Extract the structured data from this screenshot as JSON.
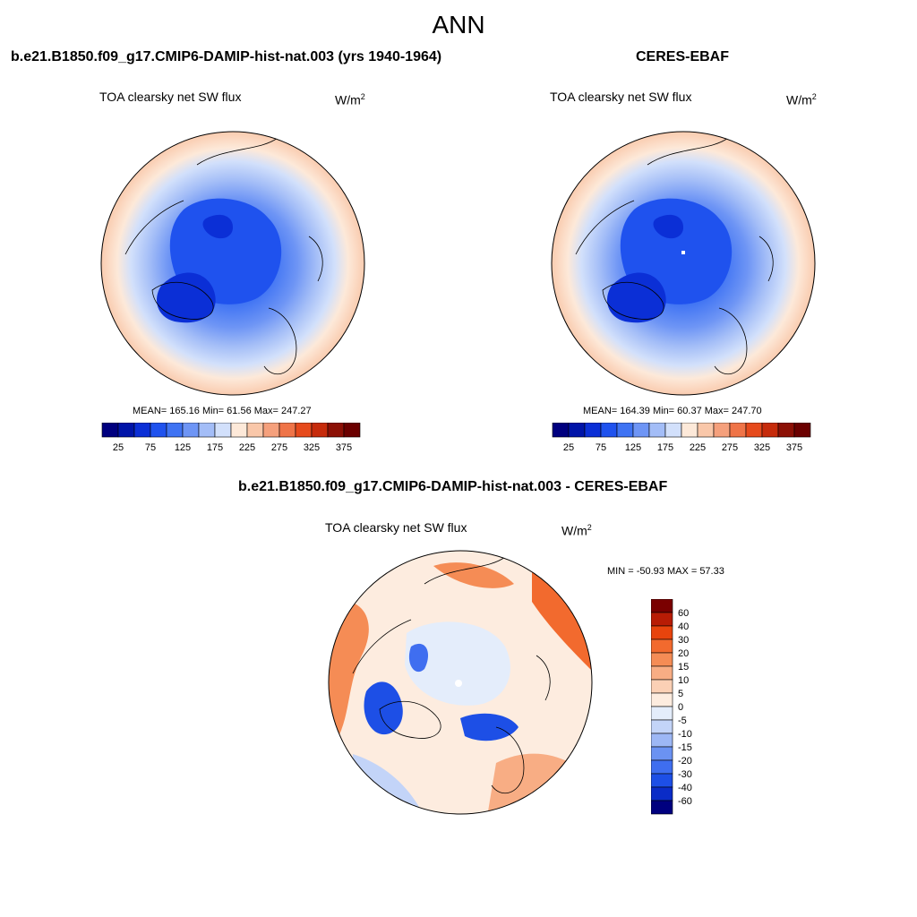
{
  "figure": {
    "season": "ANN",
    "variable_label": "TOA clearsky net SW flux",
    "units_prefix": "W/m",
    "units_power": "2"
  },
  "panels": {
    "model": {
      "title": "b.e21.B1850.f09_g17.CMIP6-DAMIP-hist-nat.003 (yrs 1940-1964)",
      "stats": "MEAN= 165.16  Min=  61.56  Max= 247.27"
    },
    "obs": {
      "title": "CERES-EBAF",
      "stats": "MEAN= 164.39  Min=  60.37  Max= 247.70"
    },
    "diff": {
      "title": "b.e21.B1850.f09_g17.CMIP6-DAMIP-hist-nat.003 - CERES-EBAF",
      "stats": "MIN = -50.93 MAX =  57.33"
    }
  },
  "colorbars": {
    "abs": {
      "tick_labels": [
        "25",
        "75",
        "125",
        "175",
        "225",
        "275",
        "325",
        "375"
      ],
      "colors": [
        "#00007f",
        "#0014a8",
        "#0b2fd6",
        "#1f52ee",
        "#3f73f3",
        "#6e95f5",
        "#a3bdf7",
        "#d2e0fb",
        "#fde9d9",
        "#f9c7a9",
        "#f5a07c",
        "#ef7448",
        "#e64a1c",
        "#c62b0b",
        "#8c1006",
        "#6b0000"
      ]
    },
    "diff": {
      "tick_labels": [
        "60",
        "40",
        "30",
        "20",
        "15",
        "10",
        "5",
        "0",
        "-5",
        "-10",
        "-15",
        "-20",
        "-30",
        "-40",
        "-60"
      ],
      "colors": [
        "#7a0000",
        "#b81c05",
        "#e8440d",
        "#f26a2e",
        "#f58c55",
        "#f8ad84",
        "#fbd0b5",
        "#fdecdf",
        "#e4edfb",
        "#c3d4f8",
        "#9db7f5",
        "#6b92f2",
        "#3f6ef0",
        "#1d4fe6",
        "#0a2cc7",
        "#00007f"
      ]
    }
  }
}
